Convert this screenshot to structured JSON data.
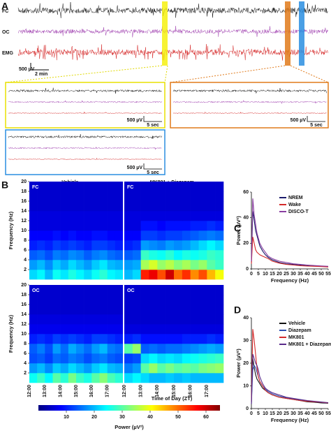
{
  "panel_a": {
    "label": "A",
    "channels": [
      "FC",
      "OC",
      "EMG"
    ],
    "scale_voltage": "500 µV",
    "scale_time": "2 min",
    "zoom_scale_voltage": "500 µV",
    "zoom_scale_time": "5 sec"
  },
  "panel_b": {
    "label": "B",
    "conditions": [
      "Vehicle",
      "MK801 + Diazepam"
    ],
    "regions": [
      "FC",
      "OC"
    ],
    "ylabel": "Frequency (Hz)",
    "xlabel": "Time of Day (ZT)",
    "time_labels": [
      "12:00",
      "13:00",
      "14:00",
      "15:00",
      "16:00",
      "17:00"
    ],
    "colorbar": {
      "label": "Power (µV²)",
      "lim": [
        0,
        65
      ],
      "ticks": [
        10,
        20,
        30,
        40,
        50,
        60
      ]
    }
  },
  "chart_data": [
    {
      "type": "heatmap",
      "ylim": [
        0,
        20
      ],
      "yticks": [
        2,
        4,
        6,
        8,
        10,
        12,
        14,
        16,
        18,
        20
      ],
      "values": [
        [
          22,
          24,
          20,
          25,
          23,
          26,
          24,
          22,
          25,
          27,
          24,
          23
        ],
        [
          18,
          20,
          17,
          21,
          19,
          22,
          20,
          18,
          21,
          23,
          20,
          19
        ],
        [
          14,
          15,
          13,
          16,
          15,
          17,
          16,
          14,
          16,
          17,
          15,
          14
        ],
        [
          10,
          11,
          10,
          12,
          11,
          12,
          11,
          10,
          12,
          12,
          11,
          10
        ],
        [
          8,
          8,
          8,
          9,
          8,
          9,
          8,
          8,
          9,
          9,
          8,
          8
        ],
        [
          6,
          6,
          6,
          6,
          6,
          6,
          6,
          6,
          6,
          6,
          6,
          6
        ],
        [
          6,
          6,
          6,
          6,
          6,
          6,
          6,
          6,
          6,
          6,
          6,
          6
        ],
        [
          5,
          5,
          5,
          5,
          5,
          5,
          5,
          5,
          5,
          5,
          5,
          5
        ],
        [
          5,
          5,
          5,
          5,
          5,
          5,
          5,
          5,
          5,
          5,
          5,
          5
        ],
        [
          5,
          5,
          5,
          5,
          5,
          5,
          5,
          5,
          5,
          5,
          5,
          5
        ]
      ]
    },
    {
      "type": "heatmap",
      "ylim": [
        0,
        20
      ],
      "values": [
        [
          20,
          22,
          55,
          58,
          52,
          60,
          50,
          54,
          48,
          52,
          45,
          40
        ],
        [
          18,
          19,
          35,
          38,
          34,
          36,
          33,
          35,
          32,
          34,
          30,
          28
        ],
        [
          14,
          15,
          28,
          26,
          25,
          27,
          24,
          26,
          25,
          26,
          28,
          27
        ],
        [
          10,
          11,
          18,
          17,
          16,
          18,
          17,
          18,
          20,
          22,
          24,
          22
        ],
        [
          8,
          8,
          12,
          12,
          11,
          12,
          12,
          13,
          14,
          15,
          16,
          15
        ],
        [
          6,
          6,
          9,
          9,
          8,
          9,
          9,
          9,
          10,
          10,
          11,
          10
        ],
        [
          6,
          6,
          6,
          6,
          6,
          6,
          6,
          6,
          6,
          6,
          6,
          6
        ],
        [
          5,
          5,
          5,
          5,
          5,
          5,
          5,
          5,
          5,
          5,
          5,
          5
        ],
        [
          5,
          5,
          5,
          5,
          5,
          5,
          5,
          5,
          5,
          5,
          5,
          5
        ],
        [
          5,
          5,
          5,
          5,
          5,
          5,
          5,
          5,
          5,
          5,
          5,
          5
        ]
      ]
    },
    {
      "type": "heatmap",
      "ylim": [
        0,
        20
      ],
      "yticks": [
        2,
        4,
        6,
        8,
        10,
        12,
        14,
        16,
        18,
        20
      ],
      "values": [
        [
          25,
          28,
          24,
          30,
          27,
          32,
          28,
          26,
          30,
          33,
          29,
          27
        ],
        [
          18,
          20,
          17,
          21,
          19,
          22,
          20,
          18,
          21,
          23,
          20,
          19
        ],
        [
          13,
          14,
          12,
          15,
          14,
          16,
          15,
          13,
          15,
          16,
          14,
          13
        ],
        [
          14,
          16,
          13,
          18,
          15,
          19,
          17,
          15,
          18,
          20,
          16,
          15
        ],
        [
          10,
          11,
          10,
          12,
          11,
          12,
          11,
          10,
          12,
          12,
          11,
          10
        ],
        [
          7,
          7,
          7,
          7,
          7,
          7,
          7,
          7,
          7,
          7,
          7,
          7
        ],
        [
          6,
          6,
          6,
          6,
          6,
          6,
          6,
          6,
          6,
          6,
          6,
          6
        ],
        [
          5,
          5,
          5,
          5,
          5,
          5,
          5,
          5,
          5,
          5,
          5,
          5
        ],
        [
          5,
          5,
          5,
          5,
          5,
          5,
          5,
          5,
          5,
          5,
          5,
          5
        ],
        [
          5,
          5,
          5,
          5,
          5,
          5,
          5,
          5,
          5,
          5,
          5,
          5
        ]
      ]
    },
    {
      "type": "heatmap",
      "ylim": [
        0,
        20
      ],
      "values": [
        [
          22,
          24,
          22,
          20,
          20,
          21,
          20,
          21,
          20,
          20,
          20,
          20
        ],
        [
          16,
          18,
          30,
          34,
          30,
          32,
          30,
          31,
          30,
          32,
          33,
          34
        ],
        [
          12,
          13,
          22,
          24,
          22,
          23,
          22,
          24,
          25,
          26,
          27,
          28
        ],
        [
          30,
          34,
          14,
          15,
          14,
          15,
          15,
          16,
          17,
          18,
          19,
          18
        ],
        [
          10,
          11,
          9,
          9,
          9,
          9,
          9,
          10,
          10,
          10,
          11,
          10
        ],
        [
          6,
          6,
          6,
          6,
          6,
          6,
          6,
          6,
          6,
          6,
          6,
          6
        ],
        [
          5,
          5,
          5,
          5,
          5,
          5,
          5,
          5,
          5,
          5,
          5,
          5
        ],
        [
          5,
          5,
          5,
          5,
          5,
          5,
          5,
          5,
          5,
          5,
          5,
          5
        ],
        [
          5,
          5,
          5,
          5,
          5,
          5,
          5,
          5,
          5,
          5,
          5,
          5
        ],
        [
          5,
          5,
          5,
          5,
          5,
          5,
          5,
          5,
          5,
          5,
          5,
          5
        ]
      ]
    },
    {
      "type": "line",
      "label": "C",
      "xlabel": "Frequency (Hz)",
      "ylabel": "Power (µV²)",
      "legend": "upper right",
      "xlim": [
        0,
        55
      ],
      "ylim": [
        0,
        60
      ],
      "xticks": [
        0,
        5,
        10,
        15,
        20,
        25,
        30,
        35,
        40,
        45,
        50,
        55
      ],
      "yticks": [
        0,
        20,
        40,
        60
      ],
      "x": [
        0,
        1,
        2,
        3,
        4,
        5,
        6,
        8,
        10,
        12,
        15,
        20,
        25,
        30,
        35,
        40,
        45,
        50,
        55
      ],
      "series": [
        {
          "name": "NREM",
          "color": "#1b1b6b",
          "values": [
            5,
            45,
            38,
            30,
            26,
            22,
            18,
            14,
            11,
            9,
            7,
            5,
            4,
            3.5,
            3,
            2.5,
            2.2,
            2,
            1.8
          ]
        },
        {
          "name": "Wake",
          "color": "#d42a2a",
          "values": [
            4,
            25,
            20,
            15,
            13,
            12,
            11,
            10,
            9,
            8,
            6,
            4.5,
            3.5,
            3,
            2.5,
            2.2,
            2,
            1.8,
            1.5
          ]
        },
        {
          "name": "DISCO-T",
          "color": "#8a3ea0",
          "values": [
            6,
            55,
            42,
            35,
            28,
            24,
            20,
            16,
            13,
            10,
            8,
            6,
            5,
            4,
            3.5,
            3,
            2.6,
            2.3,
            2
          ]
        }
      ]
    },
    {
      "type": "line",
      "label": "D",
      "xlabel": "Frequency (Hz)",
      "ylabel": "Power (µV²)",
      "legend": "upper right",
      "xlim": [
        0,
        55
      ],
      "ylim": [
        0,
        40
      ],
      "xticks": [
        0,
        5,
        10,
        15,
        20,
        25,
        30,
        35,
        40,
        45,
        50,
        55
      ],
      "yticks": [
        0,
        10,
        20,
        30,
        40
      ],
      "x": [
        0,
        1,
        2,
        3,
        4,
        5,
        6,
        8,
        10,
        12,
        15,
        20,
        25,
        30,
        35,
        40,
        45,
        50,
        55
      ],
      "series": [
        {
          "name": "Vehicle",
          "color": "#111111",
          "values": [
            2,
            22,
            18,
            15,
            13,
            12,
            11,
            9,
            8,
            7,
            6,
            5,
            4.5,
            4,
            3.5,
            3,
            2.8,
            2.5,
            2.3
          ]
        },
        {
          "name": "Diazepam",
          "color": "#2f4fb0",
          "values": [
            2,
            17,
            19,
            18,
            16,
            14,
            12,
            10,
            8.5,
            7.5,
            6.5,
            5.5,
            4.8,
            4.2,
            3.8,
            3.3,
            3,
            2.7,
            2.4
          ]
        },
        {
          "name": "MK801",
          "color": "#d42a2a",
          "values": [
            3,
            35,
            30,
            24,
            18,
            14,
            12,
            10,
            8,
            7,
            6,
            5,
            4.5,
            4,
            3.5,
            3.2,
            3,
            2.8,
            2.5
          ]
        },
        {
          "name": "MK801 + Diazepam",
          "color": "#5a2a8a",
          "values": [
            2,
            24,
            22,
            20,
            19,
            17,
            14,
            11,
            9,
            8,
            7,
            6,
            5,
            4.5,
            4,
            3.5,
            3.2,
            2.9,
            2.6
          ]
        }
      ]
    }
  ]
}
